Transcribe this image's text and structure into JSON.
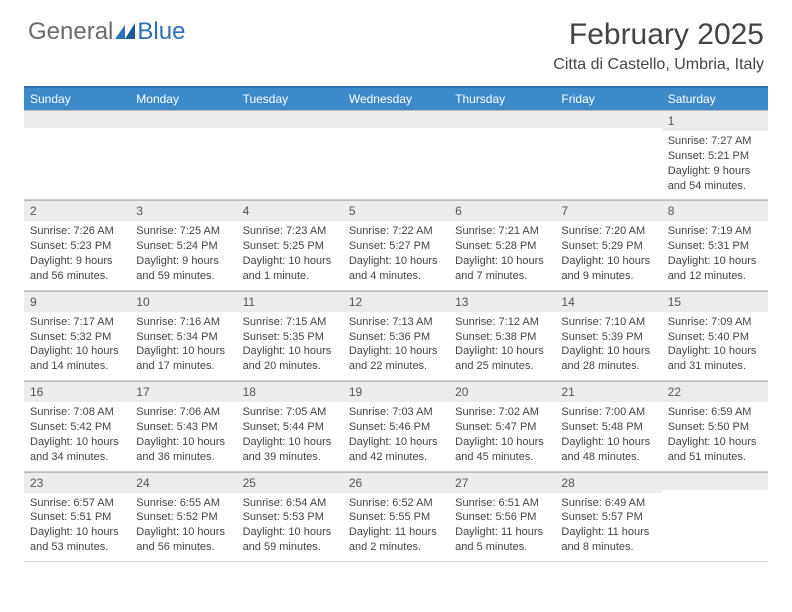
{
  "logo": {
    "text1": "General",
    "text2": "Blue"
  },
  "title": "February 2025",
  "location": "Citta di Castello, Umbria, Italy",
  "colors": {
    "accent": "#3c8ac9",
    "divider": "#2e6fb5",
    "daynum_bg": "#ececec"
  },
  "day_headers": [
    "Sunday",
    "Monday",
    "Tuesday",
    "Wednesday",
    "Thursday",
    "Friday",
    "Saturday"
  ],
  "weeks": [
    [
      null,
      null,
      null,
      null,
      null,
      null,
      {
        "n": "1",
        "sunrise": "7:27 AM",
        "sunset": "5:21 PM",
        "daylight": "9 hours and 54 minutes."
      }
    ],
    [
      {
        "n": "2",
        "sunrise": "7:26 AM",
        "sunset": "5:23 PM",
        "daylight": "9 hours and 56 minutes."
      },
      {
        "n": "3",
        "sunrise": "7:25 AM",
        "sunset": "5:24 PM",
        "daylight": "9 hours and 59 minutes."
      },
      {
        "n": "4",
        "sunrise": "7:23 AM",
        "sunset": "5:25 PM",
        "daylight": "10 hours and 1 minute."
      },
      {
        "n": "5",
        "sunrise": "7:22 AM",
        "sunset": "5:27 PM",
        "daylight": "10 hours and 4 minutes."
      },
      {
        "n": "6",
        "sunrise": "7:21 AM",
        "sunset": "5:28 PM",
        "daylight": "10 hours and 7 minutes."
      },
      {
        "n": "7",
        "sunrise": "7:20 AM",
        "sunset": "5:29 PM",
        "daylight": "10 hours and 9 minutes."
      },
      {
        "n": "8",
        "sunrise": "7:19 AM",
        "sunset": "5:31 PM",
        "daylight": "10 hours and 12 minutes."
      }
    ],
    [
      {
        "n": "9",
        "sunrise": "7:17 AM",
        "sunset": "5:32 PM",
        "daylight": "10 hours and 14 minutes."
      },
      {
        "n": "10",
        "sunrise": "7:16 AM",
        "sunset": "5:34 PM",
        "daylight": "10 hours and 17 minutes."
      },
      {
        "n": "11",
        "sunrise": "7:15 AM",
        "sunset": "5:35 PM",
        "daylight": "10 hours and 20 minutes."
      },
      {
        "n": "12",
        "sunrise": "7:13 AM",
        "sunset": "5:36 PM",
        "daylight": "10 hours and 22 minutes."
      },
      {
        "n": "13",
        "sunrise": "7:12 AM",
        "sunset": "5:38 PM",
        "daylight": "10 hours and 25 minutes."
      },
      {
        "n": "14",
        "sunrise": "7:10 AM",
        "sunset": "5:39 PM",
        "daylight": "10 hours and 28 minutes."
      },
      {
        "n": "15",
        "sunrise": "7:09 AM",
        "sunset": "5:40 PM",
        "daylight": "10 hours and 31 minutes."
      }
    ],
    [
      {
        "n": "16",
        "sunrise": "7:08 AM",
        "sunset": "5:42 PM",
        "daylight": "10 hours and 34 minutes."
      },
      {
        "n": "17",
        "sunrise": "7:06 AM",
        "sunset": "5:43 PM",
        "daylight": "10 hours and 36 minutes."
      },
      {
        "n": "18",
        "sunrise": "7:05 AM",
        "sunset": "5:44 PM",
        "daylight": "10 hours and 39 minutes."
      },
      {
        "n": "19",
        "sunrise": "7:03 AM",
        "sunset": "5:46 PM",
        "daylight": "10 hours and 42 minutes."
      },
      {
        "n": "20",
        "sunrise": "7:02 AM",
        "sunset": "5:47 PM",
        "daylight": "10 hours and 45 minutes."
      },
      {
        "n": "21",
        "sunrise": "7:00 AM",
        "sunset": "5:48 PM",
        "daylight": "10 hours and 48 minutes."
      },
      {
        "n": "22",
        "sunrise": "6:59 AM",
        "sunset": "5:50 PM",
        "daylight": "10 hours and 51 minutes."
      }
    ],
    [
      {
        "n": "23",
        "sunrise": "6:57 AM",
        "sunset": "5:51 PM",
        "daylight": "10 hours and 53 minutes."
      },
      {
        "n": "24",
        "sunrise": "6:55 AM",
        "sunset": "5:52 PM",
        "daylight": "10 hours and 56 minutes."
      },
      {
        "n": "25",
        "sunrise": "6:54 AM",
        "sunset": "5:53 PM",
        "daylight": "10 hours and 59 minutes."
      },
      {
        "n": "26",
        "sunrise": "6:52 AM",
        "sunset": "5:55 PM",
        "daylight": "11 hours and 2 minutes."
      },
      {
        "n": "27",
        "sunrise": "6:51 AM",
        "sunset": "5:56 PM",
        "daylight": "11 hours and 5 minutes."
      },
      {
        "n": "28",
        "sunrise": "6:49 AM",
        "sunset": "5:57 PM",
        "daylight": "11 hours and 8 minutes."
      },
      null
    ]
  ],
  "labels": {
    "sunrise": "Sunrise:",
    "sunset": "Sunset:",
    "daylight": "Daylight:"
  }
}
